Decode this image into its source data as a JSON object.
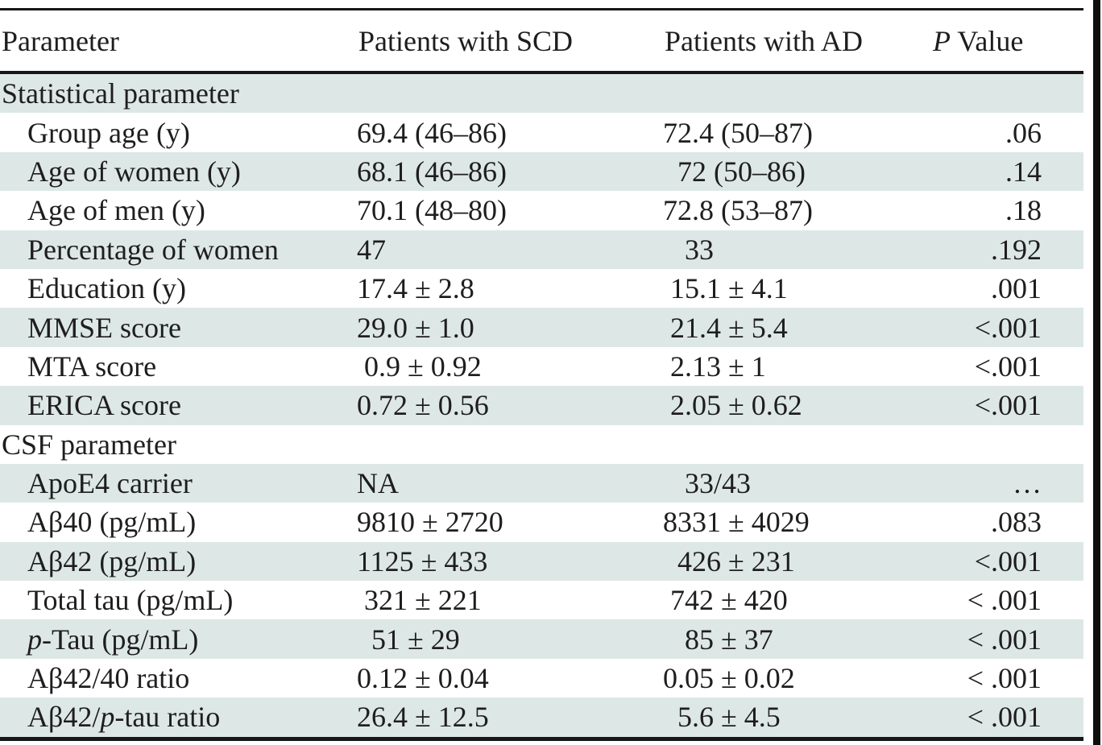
{
  "colors": {
    "row_shade": "#dde8e6",
    "rule": "#161616",
    "text": "#1f1d1e",
    "page_divider": "#0e0e0e"
  },
  "table": {
    "columns": [
      {
        "label": [
          {
            "t": "Parameter"
          }
        ]
      },
      {
        "label": [
          {
            "t": "Patients with SCD"
          }
        ]
      },
      {
        "label": [
          {
            "t": "Patients with AD"
          }
        ]
      },
      {
        "label": [
          {
            "t": "P",
            "i": true
          },
          {
            "t": " Value"
          }
        ]
      }
    ],
    "rows": [
      {
        "type": "section",
        "shaded": true,
        "param": [
          {
            "t": "Statistical parameter"
          }
        ],
        "scd": "",
        "ad": "",
        "p": ""
      },
      {
        "type": "item",
        "shaded": false,
        "param": [
          {
            "t": "Group age (y)"
          }
        ],
        "scd": "69.4 (46–86)",
        "ad": "72.4 (50–87)",
        "p": ".06"
      },
      {
        "type": "item",
        "shaded": true,
        "param": [
          {
            "t": "Age of women (y)"
          }
        ],
        "scd": "68.1 (46–86)",
        "ad": "  72 (50–86)",
        "p": ".14"
      },
      {
        "type": "item",
        "shaded": false,
        "param": [
          {
            "t": "Age of men (y)"
          }
        ],
        "scd": "70.1 (48–80)",
        "ad": "72.8 (53–87)",
        "p": ".18"
      },
      {
        "type": "item",
        "shaded": true,
        "param": [
          {
            "t": "Percentage of women"
          }
        ],
        "scd": "47",
        "ad": "   33",
        "p": ".192"
      },
      {
        "type": "item",
        "shaded": false,
        "param": [
          {
            "t": "Education (y)"
          }
        ],
        "scd": "17.4 ± 2.8",
        "ad": " 15.1 ± 4.1",
        "p": ".001"
      },
      {
        "type": "item",
        "shaded": true,
        "param": [
          {
            "t": "MMSE score"
          }
        ],
        "scd": "29.0 ± 1.0",
        "ad": " 21.4 ± 5.4",
        "p": "<.001"
      },
      {
        "type": "item",
        "shaded": false,
        "param": [
          {
            "t": "MTA score"
          }
        ],
        "scd": " 0.9 ± 0.92",
        "ad": " 2.13 ± 1",
        "p": "<.001"
      },
      {
        "type": "item",
        "shaded": true,
        "param": [
          {
            "t": "ERICA score"
          }
        ],
        "scd": "0.72 ± 0.56",
        "ad": " 2.05 ± 0.62",
        "p": "<.001"
      },
      {
        "type": "section",
        "shaded": false,
        "param": [
          {
            "t": "CSF parameter"
          }
        ],
        "scd": "",
        "ad": "",
        "p": ""
      },
      {
        "type": "item",
        "shaded": true,
        "param": [
          {
            "t": "ApoE4 carrier"
          }
        ],
        "scd": "NA",
        "ad": "   33/43",
        "p": "…"
      },
      {
        "type": "item",
        "shaded": false,
        "param": [
          {
            "t": "Aβ40 (pg/mL)"
          }
        ],
        "scd": "9810 ± 2720",
        "ad": "8331 ± 4029",
        "p": ".083"
      },
      {
        "type": "item",
        "shaded": true,
        "param": [
          {
            "t": "Aβ42 (pg/mL)"
          }
        ],
        "scd": "1125 ± 433",
        "ad": "  426 ± 231",
        "p": "<.001"
      },
      {
        "type": "item",
        "shaded": false,
        "param": [
          {
            "t": "Total tau (pg/mL)"
          }
        ],
        "scd": " 321 ± 221",
        "ad": " 742 ± 420",
        "p": "< .001"
      },
      {
        "type": "item",
        "shaded": true,
        "param": [
          {
            "t": "p",
            "i": true
          },
          {
            "t": "-Tau (pg/mL)"
          }
        ],
        "scd": "  51 ± 29",
        "ad": "   85 ± 37",
        "p": "< .001"
      },
      {
        "type": "item",
        "shaded": false,
        "param": [
          {
            "t": "Aβ42/40 ratio"
          }
        ],
        "scd": "0.12 ± 0.04",
        "ad": "0.05 ± 0.02",
        "p": "< .001"
      },
      {
        "type": "item",
        "shaded": true,
        "param": [
          {
            "t": "Aβ42/"
          },
          {
            "t": "p",
            "i": true
          },
          {
            "t": "-tau ratio"
          }
        ],
        "scd": "26.4 ± 12.5",
        "ad": "  5.6 ± 4.5",
        "p": "< .001"
      }
    ]
  }
}
